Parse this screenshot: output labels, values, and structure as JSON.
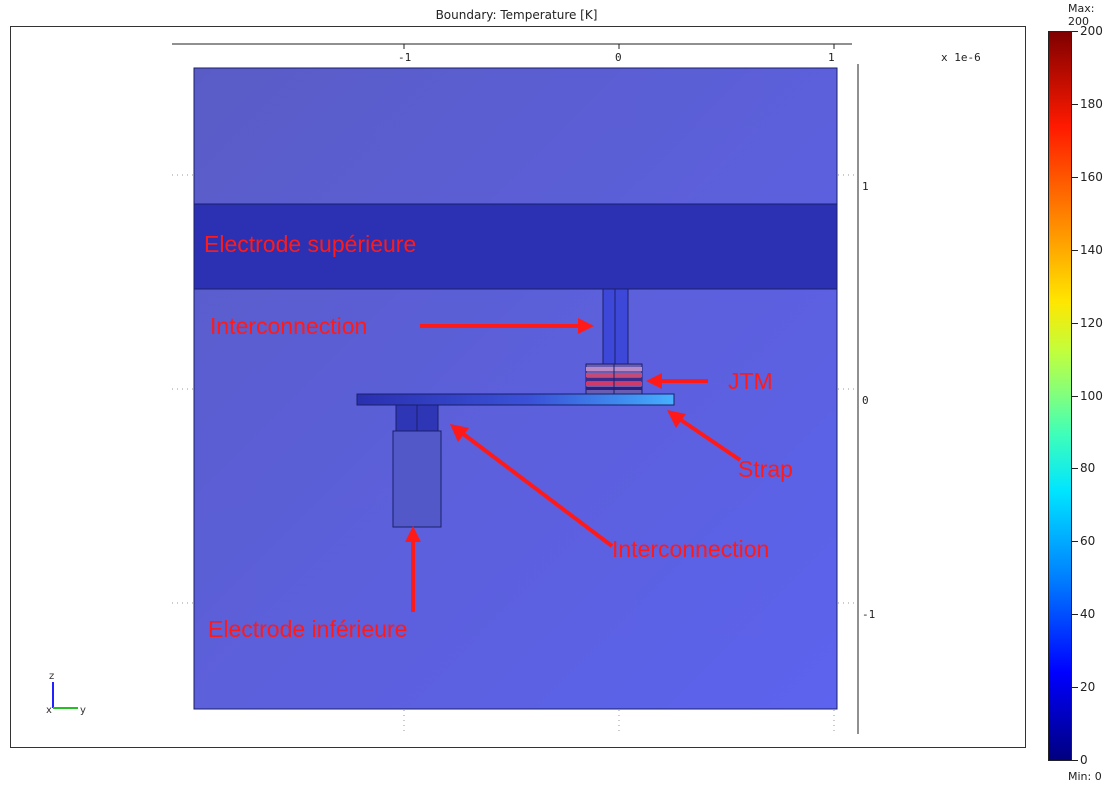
{
  "title": "Boundary: Temperature [K]",
  "axes": {
    "x_ticks": [
      "-1",
      "0",
      "1"
    ],
    "y_ticks": [
      "1",
      "0",
      "-1"
    ],
    "scale_label": "x 1e-6",
    "axis_indicator": {
      "z": "z",
      "x": "x",
      "y": "y"
    }
  },
  "annotations": {
    "top_electrode": "Electrode supérieure",
    "interconnection_top": "Interconnection",
    "jtm": "JTM",
    "strap": "Strap",
    "interconnection_bottom": "Interconnection",
    "bottom_electrode": "Electrode inférieure"
  },
  "colorbar": {
    "max_label": "Max: 200",
    "min_label": "Min: 0",
    "ticks": [
      "200",
      "180",
      "160",
      "140",
      "120",
      "100",
      "80",
      "60",
      "40",
      "20",
      "0"
    ]
  },
  "colors": {
    "background_region": "#5a5fcf",
    "electrode_top": "#2a30b0",
    "annotation": "#ff1a1a"
  }
}
